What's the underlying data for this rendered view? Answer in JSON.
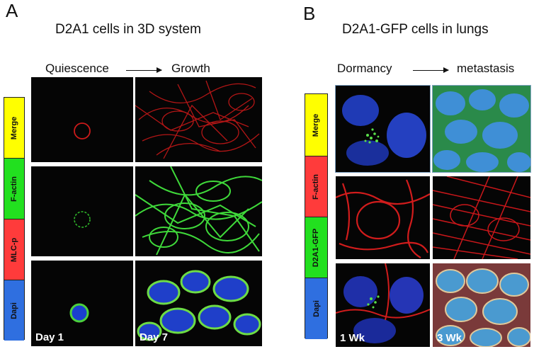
{
  "panel_a": {
    "letter": "A",
    "title": "D2A1 cells in 3D system",
    "stage_from": "Quiescence",
    "stage_to": "Growth",
    "legend": [
      {
        "label": "Merge",
        "color": "#ffff00"
      },
      {
        "label": "F-actin",
        "color": "#22e01f"
      },
      {
        "label": "MLC-p",
        "color": "#ff3b3b"
      },
      {
        "label": "Dapi",
        "color": "#2f6fe0"
      }
    ],
    "image_labels": {
      "day1": "Day 1",
      "day7": "Day 7"
    }
  },
  "panel_b": {
    "letter": "B",
    "title": "D2A1-GFP cells in lungs",
    "stage_from": "Dormancy",
    "stage_to": "metastasis",
    "legend": [
      {
        "label": "Merge",
        "color": "#ffff00"
      },
      {
        "label": "F-actin",
        "color": "#ff3b3b"
      },
      {
        "label": "D2A1-GFP",
        "color": "#22e01f"
      },
      {
        "label": "Dapi",
        "color": "#2f6fe0"
      }
    ],
    "image_labels": {
      "wk1": "1 Wk",
      "wk3": "3 Wk"
    }
  }
}
